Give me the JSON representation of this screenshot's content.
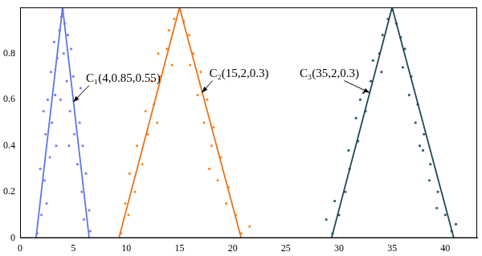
{
  "chart_data": {
    "type": "scatter",
    "xlim": [
      0,
      43
    ],
    "xticks": [
      0,
      5,
      10,
      15,
      20,
      25,
      30,
      35,
      40
    ],
    "ylim": [
      0,
      1
    ],
    "yticks": [
      0,
      0.2,
      0.4,
      0.6,
      0.8
    ],
    "grid": false,
    "annotations": [
      "C₁(4,0.85,0.55)",
      "C₂(15,2,0.3)",
      "C₃(35,2,0.3)"
    ],
    "series": [
      {
        "type": "scatter",
        "color": "#8080f0",
        "marker": "dot",
        "x": [
          1.6,
          2.0,
          2.3,
          1.9,
          2.8,
          2.4,
          3.0,
          2.6,
          3.3,
          2.9,
          3.5,
          3.2,
          3.7,
          3.9,
          4.0,
          4.2,
          4.5,
          4.1,
          4.8,
          5.0,
          4.4,
          5.3,
          4.7,
          5.6,
          5.1,
          5.9,
          5.4,
          6.2,
          5.8,
          6.5,
          6.0,
          6.6,
          3.4,
          4.6,
          2.2,
          5.7,
          3.8,
          2.5
        ],
        "values": [
          0.02,
          0.1,
          0.25,
          0.3,
          0.35,
          0.45,
          0.5,
          0.6,
          0.62,
          0.72,
          0.78,
          0.85,
          0.9,
          0.96,
          0.99,
          0.93,
          0.88,
          0.8,
          0.82,
          0.7,
          0.68,
          0.6,
          0.55,
          0.5,
          0.45,
          0.4,
          0.32,
          0.28,
          0.2,
          0.12,
          0.08,
          0.03,
          0.4,
          0.4,
          0.55,
          0.65,
          0.6,
          0.15
        ]
      },
      {
        "type": "line",
        "color": "#5a78e6",
        "line_style": "solid",
        "x": [
          1.5,
          4,
          6.5
        ],
        "values": [
          0,
          1,
          0
        ]
      },
      {
        "type": "scatter",
        "color": "#f28c28",
        "marker": "dot",
        "x": [
          9.5,
          10.2,
          10.8,
          10.3,
          11.5,
          11.0,
          12.0,
          11.8,
          12.6,
          12.4,
          13.2,
          13.0,
          13.8,
          14.0,
          14.5,
          15.0,
          15.4,
          15.9,
          16.3,
          16.0,
          17.0,
          16.7,
          17.6,
          17.3,
          18.2,
          18.0,
          18.9,
          18.6,
          19.6,
          19.4,
          20.3,
          20.8,
          21.6,
          9.9,
          12.9,
          17.8,
          14.3
        ],
        "values": [
          0.02,
          0.1,
          0.2,
          0.28,
          0.32,
          0.4,
          0.45,
          0.55,
          0.58,
          0.68,
          0.7,
          0.8,
          0.82,
          0.9,
          0.95,
          0.99,
          0.94,
          0.88,
          0.8,
          0.75,
          0.72,
          0.62,
          0.6,
          0.5,
          0.48,
          0.4,
          0.35,
          0.25,
          0.22,
          0.15,
          0.1,
          0.02,
          0.05,
          0.15,
          0.5,
          0.3,
          0.75
        ]
      },
      {
        "type": "line",
        "color": "#e8741a",
        "line_style": "solid",
        "x": [
          9.3,
          15,
          20.8
        ],
        "values": [
          0,
          1,
          0
        ]
      },
      {
        "type": "scatter",
        "color": "#2f5f6a",
        "marker": "dot",
        "x": [
          29.4,
          30.0,
          29.6,
          30.6,
          31.0,
          30.9,
          31.8,
          31.6,
          32.5,
          32.3,
          33.0,
          33.2,
          33.8,
          34.1,
          34.6,
          35.0,
          35.4,
          35.8,
          36.2,
          36.0,
          36.8,
          36.6,
          37.4,
          37.2,
          38.0,
          37.9,
          38.6,
          38.5,
          39.3,
          39.2,
          40.0,
          40.6,
          41.0,
          28.8,
          32.0,
          37.6,
          34.0
        ],
        "values": [
          0.02,
          0.1,
          0.16,
          0.2,
          0.3,
          0.38,
          0.42,
          0.52,
          0.55,
          0.63,
          0.68,
          0.77,
          0.8,
          0.88,
          0.95,
          0.99,
          0.93,
          0.87,
          0.82,
          0.74,
          0.7,
          0.62,
          0.58,
          0.5,
          0.45,
          0.38,
          0.32,
          0.25,
          0.2,
          0.13,
          0.1,
          0.03,
          0.06,
          0.08,
          0.6,
          0.4,
          0.72
        ]
      },
      {
        "type": "line",
        "color": "#1f4a55",
        "line_style": "solid",
        "x": [
          29.3,
          35,
          40.8
        ],
        "values": [
          0,
          1,
          0
        ]
      }
    ]
  }
}
